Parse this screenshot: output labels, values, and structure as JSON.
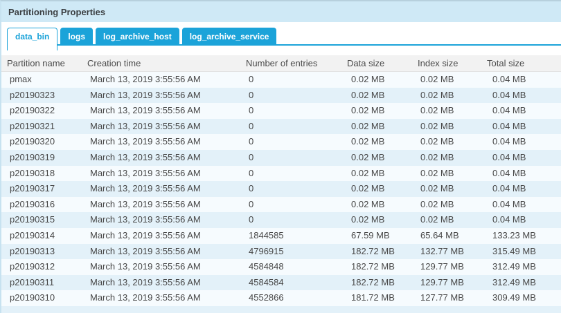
{
  "panel": {
    "title": "Partitioning Properties"
  },
  "tabs": [
    {
      "label": "data_bin",
      "active": true
    },
    {
      "label": "logs",
      "active": false
    },
    {
      "label": "log_archive_host",
      "active": false
    },
    {
      "label": "log_archive_service",
      "active": false
    }
  ],
  "table": {
    "columns": [
      "Partition name",
      "Creation time",
      "Number of entries",
      "Data size",
      "Index size",
      "Total size"
    ],
    "rows": [
      [
        "pmax",
        "March 13, 2019 3:55:56 AM",
        "0",
        "0.02 MB",
        "0.02 MB",
        "0.04 MB"
      ],
      [
        "p20190323",
        "March 13, 2019 3:55:56 AM",
        "0",
        "0.02 MB",
        "0.02 MB",
        "0.04 MB"
      ],
      [
        "p20190322",
        "March 13, 2019 3:55:56 AM",
        "0",
        "0.02 MB",
        "0.02 MB",
        "0.04 MB"
      ],
      [
        "p20190321",
        "March 13, 2019 3:55:56 AM",
        "0",
        "0.02 MB",
        "0.02 MB",
        "0.04 MB"
      ],
      [
        "p20190320",
        "March 13, 2019 3:55:56 AM",
        "0",
        "0.02 MB",
        "0.02 MB",
        "0.04 MB"
      ],
      [
        "p20190319",
        "March 13, 2019 3:55:56 AM",
        "0",
        "0.02 MB",
        "0.02 MB",
        "0.04 MB"
      ],
      [
        "p20190318",
        "March 13, 2019 3:55:56 AM",
        "0",
        "0.02 MB",
        "0.02 MB",
        "0.04 MB"
      ],
      [
        "p20190317",
        "March 13, 2019 3:55:56 AM",
        "0",
        "0.02 MB",
        "0.02 MB",
        "0.04 MB"
      ],
      [
        "p20190316",
        "March 13, 2019 3:55:56 AM",
        "0",
        "0.02 MB",
        "0.02 MB",
        "0.04 MB"
      ],
      [
        "p20190315",
        "March 13, 2019 3:55:56 AM",
        "0",
        "0.02 MB",
        "0.02 MB",
        "0.04 MB"
      ],
      [
        "p20190314",
        "March 13, 2019 3:55:56 AM",
        "1844585",
        "67.59 MB",
        "65.64 MB",
        "133.23 MB"
      ],
      [
        "p20190313",
        "March 13, 2019 3:55:56 AM",
        "4796915",
        "182.72 MB",
        "132.77 MB",
        "315.49 MB"
      ],
      [
        "p20190312",
        "March 13, 2019 3:55:56 AM",
        "4584848",
        "182.72 MB",
        "129.77 MB",
        "312.49 MB"
      ],
      [
        "p20190311",
        "March 13, 2019 3:55:56 AM",
        "4584584",
        "182.72 MB",
        "129.77 MB",
        "312.49 MB"
      ],
      [
        "p20190310",
        "March 13, 2019 3:55:56 AM",
        "4552866",
        "181.72 MB",
        "127.77 MB",
        "309.49 MB"
      ]
    ]
  },
  "colors": {
    "accent": "#1ba3d9",
    "titlebar_bg": "#cfe9f6",
    "header_bg": "#f2f2f2",
    "row_odd": "#f6fbfe",
    "row_even": "#e3f1f9"
  }
}
